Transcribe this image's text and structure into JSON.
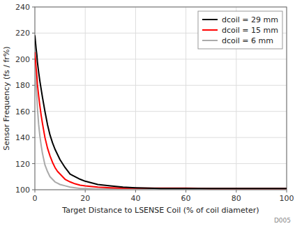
{
  "chart_data": {
    "type": "line",
    "xlabel": "Target Distance to LSENSE Coil (% of coil diameter)",
    "ylabel": "Sensor Frequency (fs / fr%)",
    "annotation": "D005",
    "x": [
      0,
      0.3,
      0.5,
      0.8,
      1,
      1.5,
      2,
      2.5,
      3,
      4,
      5,
      6,
      7,
      8,
      9,
      10,
      12,
      14,
      16,
      18,
      20,
      25,
      30,
      35,
      40,
      45,
      50,
      55,
      60,
      70,
      80,
      90,
      100
    ],
    "series": [
      {
        "name": "dcoil = 29 mm",
        "color": "#000000",
        "values": [
          218,
          212,
          208,
          203,
          198,
          190,
          183,
          177,
          171,
          160,
          150,
          142,
          136,
          131,
          127,
          123,
          117,
          112,
          110,
          108,
          106.5,
          104,
          103,
          102,
          101.5,
          101.2,
          101,
          101,
          101,
          101,
          101,
          101,
          101
        ]
      },
      {
        "name": "dcoil = 15 mm",
        "color": "#ff0000",
        "values": [
          205,
          198,
          193,
          187,
          181,
          172,
          164,
          157,
          151,
          140,
          132,
          126,
          121,
          117,
          114,
          112,
          108,
          106,
          104.5,
          103.5,
          103,
          102,
          101.5,
          101.2,
          101.2,
          101.2,
          101.2,
          101.2,
          101.2,
          101,
          101,
          101,
          101
        ]
      },
      {
        "name": "dcoil = 6 mm",
        "color": "#aaaaaa",
        "values": [
          205,
          190,
          181,
          171,
          163,
          150,
          141,
          134,
          128,
          119,
          114,
          110,
          108,
          106,
          105,
          104,
          103,
          102,
          101.5,
          101,
          101,
          100.5,
          100.5,
          100.5,
          100.5,
          100.5,
          100.5,
          100.5,
          100.5,
          100.5,
          100.5,
          100.5,
          100.5
        ]
      }
    ],
    "xlim": [
      0,
      100
    ],
    "ylim": [
      100,
      240
    ],
    "xticks": [
      0,
      20,
      40,
      60,
      80,
      100
    ],
    "yticks": [
      100,
      120,
      140,
      160,
      180,
      200,
      220,
      240
    ],
    "grid": true,
    "legend": "upper right"
  }
}
